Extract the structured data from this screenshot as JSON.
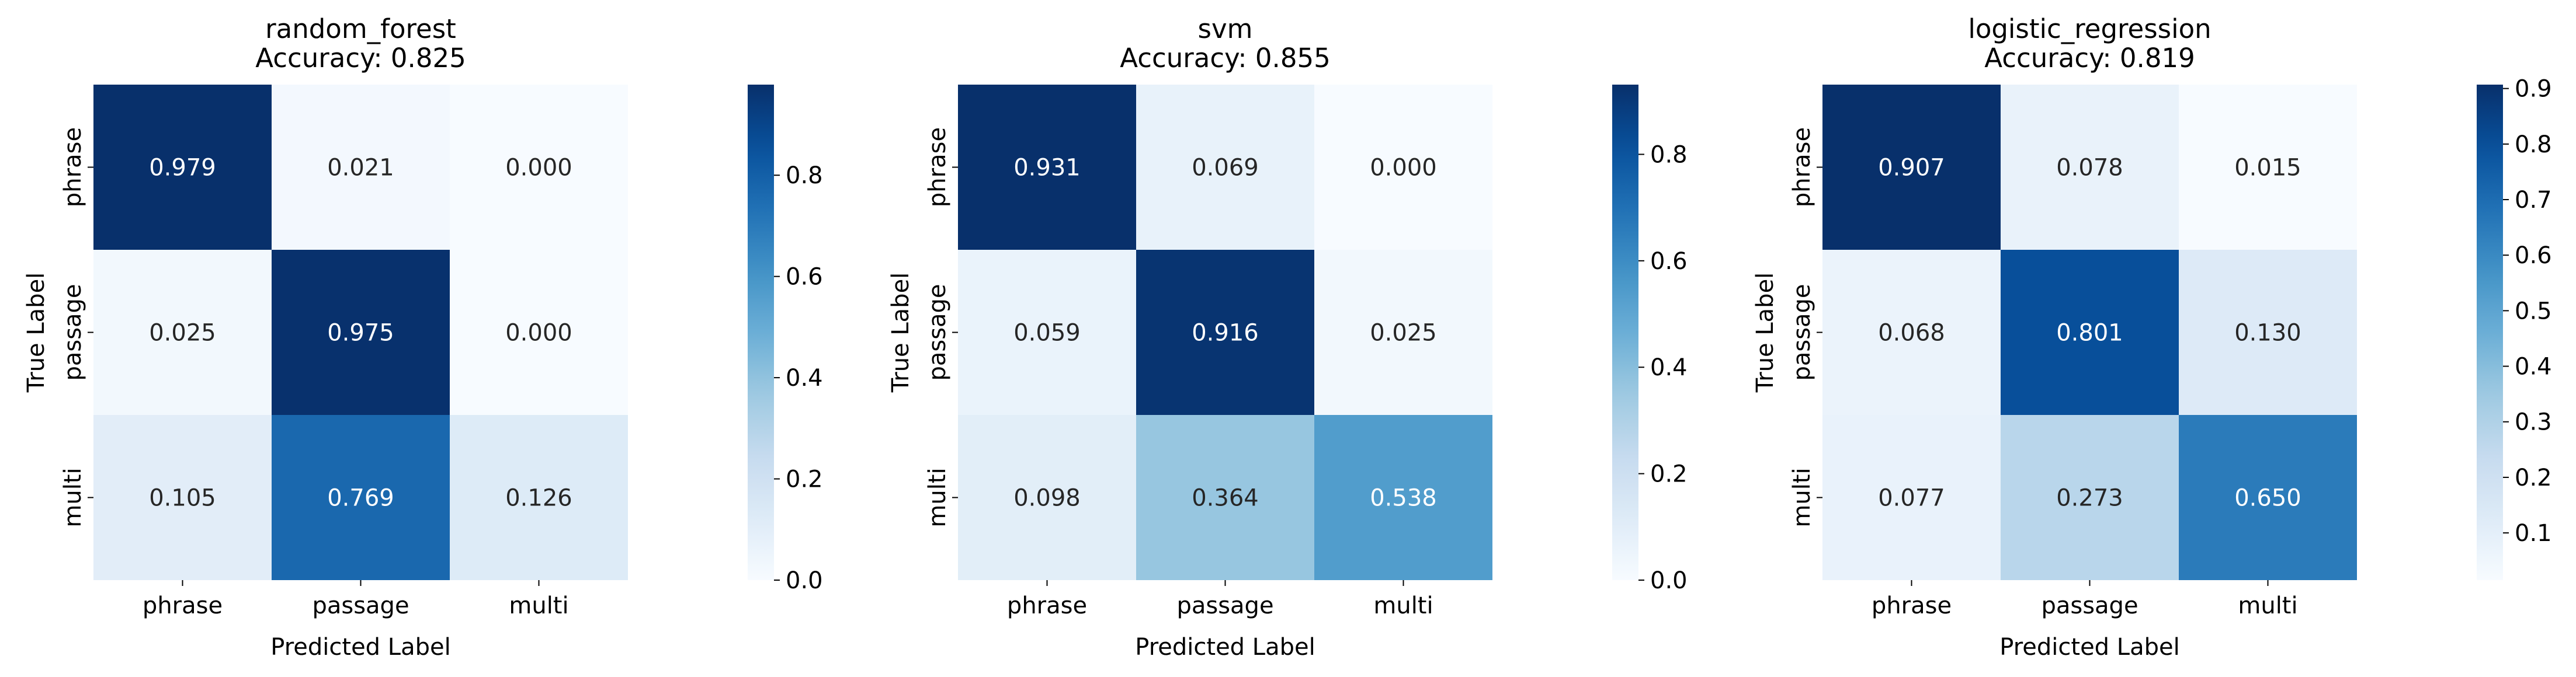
{
  "chart_data": [
    {
      "type": "heatmap",
      "title": "random_forest\nAccuracy: 0.825",
      "title_lines": [
        "random_forest",
        "Accuracy: 0.825"
      ],
      "xlabel": "Predicted Label",
      "ylabel": "True Label",
      "x_categories": [
        "phrase",
        "passage",
        "multi"
      ],
      "y_categories": [
        "phrase",
        "passage",
        "multi"
      ],
      "matrix": [
        [
          0.979,
          0.021,
          0.0
        ],
        [
          0.025,
          0.975,
          0.0
        ],
        [
          0.105,
          0.769,
          0.126
        ]
      ],
      "value_labels": [
        [
          "0.979",
          "0.021",
          "0.000"
        ],
        [
          "0.025",
          "0.975",
          "0.000"
        ],
        [
          "0.105",
          "0.769",
          "0.126"
        ]
      ],
      "colorbar": {
        "vmin": 0.0,
        "vmax": 0.979,
        "ticks": [
          0.0,
          0.2,
          0.4,
          0.6,
          0.8
        ],
        "tick_labels": [
          "0.0",
          "0.2",
          "0.4",
          "0.6",
          "0.8"
        ]
      }
    },
    {
      "type": "heatmap",
      "title": "svm\nAccuracy: 0.855",
      "title_lines": [
        "svm",
        "Accuracy: 0.855"
      ],
      "xlabel": "Predicted Label",
      "ylabel": "True Label",
      "x_categories": [
        "phrase",
        "passage",
        "multi"
      ],
      "y_categories": [
        "phrase",
        "passage",
        "multi"
      ],
      "matrix": [
        [
          0.931,
          0.069,
          0.0
        ],
        [
          0.059,
          0.916,
          0.025
        ],
        [
          0.098,
          0.364,
          0.538
        ]
      ],
      "value_labels": [
        [
          "0.931",
          "0.069",
          "0.000"
        ],
        [
          "0.059",
          "0.916",
          "0.025"
        ],
        [
          "0.098",
          "0.364",
          "0.538"
        ]
      ],
      "colorbar": {
        "vmin": 0.0,
        "vmax": 0.931,
        "ticks": [
          0.0,
          0.2,
          0.4,
          0.6,
          0.8
        ],
        "tick_labels": [
          "0.0",
          "0.2",
          "0.4",
          "0.6",
          "0.8"
        ]
      }
    },
    {
      "type": "heatmap",
      "title": "logistic_regression\nAccuracy: 0.819",
      "title_lines": [
        "logistic_regression",
        "Accuracy: 0.819"
      ],
      "xlabel": "Predicted Label",
      "ylabel": "True Label",
      "x_categories": [
        "phrase",
        "passage",
        "multi"
      ],
      "y_categories": [
        "phrase",
        "passage",
        "multi"
      ],
      "matrix": [
        [
          0.907,
          0.078,
          0.015
        ],
        [
          0.068,
          0.801,
          0.13
        ],
        [
          0.077,
          0.273,
          0.65
        ]
      ],
      "value_labels": [
        [
          "0.907",
          "0.078",
          "0.015"
        ],
        [
          "0.068",
          "0.801",
          "0.130"
        ],
        [
          "0.077",
          "0.273",
          "0.650"
        ]
      ],
      "colorbar": {
        "vmin": 0.015,
        "vmax": 0.907,
        "ticks": [
          0.1,
          0.2,
          0.3,
          0.4,
          0.5,
          0.6,
          0.7,
          0.8,
          0.9
        ],
        "tick_labels": [
          "0.1",
          "0.2",
          "0.3",
          "0.4",
          "0.5",
          "0.6",
          "0.7",
          "0.8",
          "0.9"
        ]
      }
    }
  ],
  "colormap": "Blues",
  "colors": [
    "#f7fbff",
    "#deebf7",
    "#c6dbef",
    "#9ecae1",
    "#6baed6",
    "#4292c6",
    "#2171b5",
    "#08519c",
    "#08306b"
  ]
}
